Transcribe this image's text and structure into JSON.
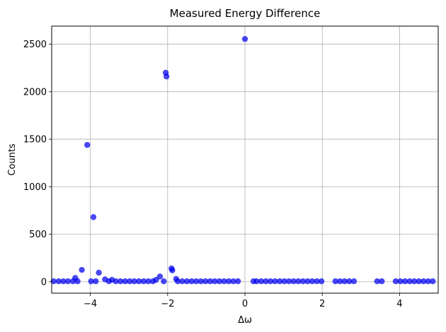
{
  "chart_data": {
    "type": "scatter",
    "title": "Measured Energy Difference",
    "xlabel": "Δω",
    "ylabel": "Counts",
    "xlim": [
      -5,
      5
    ],
    "ylim": [
      -120,
      2690
    ],
    "xticks": [
      -4,
      -2,
      0,
      2,
      4
    ],
    "yticks": [
      0,
      500,
      1000,
      1500,
      2000,
      2500
    ],
    "grid": true,
    "legend": "none",
    "marker_color": "#0000ee",
    "series": [
      {
        "points": [
          [
            -4.95,
            5
          ],
          [
            -4.82,
            5
          ],
          [
            -4.7,
            5
          ],
          [
            -4.58,
            5
          ],
          [
            -4.45,
            5
          ],
          [
            -4.39,
            40
          ],
          [
            -4.33,
            5
          ],
          [
            -4.22,
            125
          ],
          [
            -4.08,
            1440
          ],
          [
            -3.98,
            5
          ],
          [
            -3.92,
            680
          ],
          [
            -3.86,
            5
          ],
          [
            -3.78,
            95
          ],
          [
            -3.62,
            25
          ],
          [
            -3.52,
            5
          ],
          [
            -3.44,
            20
          ],
          [
            -3.34,
            5
          ],
          [
            -3.22,
            5
          ],
          [
            -3.1,
            5
          ],
          [
            -2.98,
            5
          ],
          [
            -2.86,
            5
          ],
          [
            -2.74,
            5
          ],
          [
            -2.62,
            5
          ],
          [
            -2.5,
            5
          ],
          [
            -2.38,
            5
          ],
          [
            -2.3,
            20
          ],
          [
            -2.2,
            55
          ],
          [
            -2.1,
            5
          ],
          [
            -2.05,
            2200
          ],
          [
            -2.03,
            2160
          ],
          [
            -1.9,
            140
          ],
          [
            -1.88,
            120
          ],
          [
            -1.78,
            30
          ],
          [
            -1.74,
            5
          ],
          [
            -1.62,
            5
          ],
          [
            -1.5,
            5
          ],
          [
            -1.38,
            5
          ],
          [
            -1.26,
            5
          ],
          [
            -1.14,
            5
          ],
          [
            -1.02,
            5
          ],
          [
            -0.9,
            5
          ],
          [
            -0.78,
            5
          ],
          [
            -0.66,
            5
          ],
          [
            -0.54,
            5
          ],
          [
            -0.42,
            5
          ],
          [
            -0.3,
            5
          ],
          [
            -0.18,
            5
          ],
          [
            0.0,
            2555
          ],
          [
            0.22,
            5
          ],
          [
            0.3,
            5
          ],
          [
            0.42,
            5
          ],
          [
            0.54,
            5
          ],
          [
            0.66,
            5
          ],
          [
            0.78,
            5
          ],
          [
            0.9,
            5
          ],
          [
            1.02,
            5
          ],
          [
            1.14,
            5
          ],
          [
            1.26,
            5
          ],
          [
            1.38,
            5
          ],
          [
            1.5,
            5
          ],
          [
            1.62,
            5
          ],
          [
            1.74,
            5
          ],
          [
            1.86,
            5
          ],
          [
            1.98,
            5
          ],
          [
            2.34,
            5
          ],
          [
            2.46,
            5
          ],
          [
            2.58,
            5
          ],
          [
            2.7,
            5
          ],
          [
            2.82,
            5
          ],
          [
            3.42,
            5
          ],
          [
            3.54,
            5
          ],
          [
            3.9,
            5
          ],
          [
            4.02,
            5
          ],
          [
            4.14,
            5
          ],
          [
            4.26,
            5
          ],
          [
            4.38,
            5
          ],
          [
            4.5,
            5
          ],
          [
            4.62,
            5
          ],
          [
            4.74,
            5
          ],
          [
            4.86,
            5
          ]
        ]
      }
    ]
  }
}
